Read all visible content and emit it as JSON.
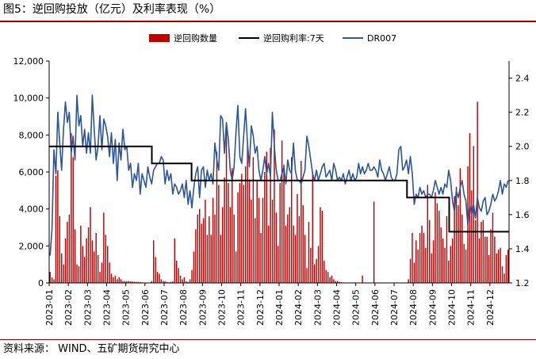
{
  "title": "图5：逆回购投放（亿元）及利率表现（%）",
  "source": "资料来源：  WIND、五矿期货研究中心",
  "colors": {
    "bars": "#c00000",
    "policy": "#000000",
    "dr007": "#2e5597",
    "rule": "#a80000"
  },
  "chart_data": {
    "type": "bar+line",
    "legend_placement": "top",
    "grid": false,
    "x_ticks": [
      "2023-01",
      "2023-02",
      "2023-03",
      "2023-04",
      "2023-05",
      "2023-06",
      "2023-07",
      "2023-08",
      "2023-09",
      "2023-10",
      "2023-11",
      "2023-12",
      "2024-01",
      "2024-02",
      "2024-03",
      "2024-04",
      "2024-05",
      "2024-06",
      "2024-07",
      "2024-08",
      "2024-09",
      "2024-10",
      "2024-11",
      "2024-12"
    ],
    "y_left": {
      "ticks": [
        "0",
        "2,000",
        "4,000",
        "6,000",
        "8,000",
        "10,000",
        "12,000"
      ],
      "lim": [
        0,
        12000
      ]
    },
    "y_right": {
      "ticks": [
        "1.2",
        "1.4",
        "1.6",
        "1.8",
        "2.0",
        "2.2",
        "2.4"
      ],
      "lim": [
        1.2,
        2.5
      ]
    },
    "x_range": [
      "2023-01-01",
      "2024-12-31"
    ],
    "series": [
      {
        "name": "逆回购数量",
        "kind": "bar",
        "axis": "left",
        "samples_per_month": 10,
        "monthly": [
          [
            600,
            300,
            200,
            5800,
            6100,
            3600,
            1600,
            1000,
            2400,
            3300
          ],
          [
            3700,
            8100,
            6800,
            2900,
            1000,
            900,
            3100,
            2000,
            1400,
            2400
          ],
          [
            3000,
            4100,
            2300,
            1700,
            2700,
            1500,
            600,
            1100,
            3800,
            2600
          ],
          [
            2000,
            1100,
            500,
            300,
            400,
            200,
            300,
            200,
            100,
            100
          ],
          [
            100,
            100,
            80,
            80,
            60,
            60,
            50,
            40,
            30,
            20
          ],
          [
            20,
            10,
            20,
            100,
            2300,
            1400,
            600,
            500,
            200,
            100
          ],
          [
            100,
            50,
            30,
            60,
            80,
            2400,
            1200,
            800,
            400,
            200
          ],
          [
            300,
            80,
            60,
            200,
            700,
            1700,
            2900,
            3700,
            4000,
            3200
          ],
          [
            3500,
            4500,
            2600,
            3600,
            2600,
            4600,
            3700,
            7100,
            5300,
            2600
          ],
          [
            4100,
            5700,
            8500,
            5400,
            4100,
            6200,
            3700,
            1700,
            4900,
            5400
          ],
          [
            5900,
            5300,
            6300,
            7500,
            5600,
            4500,
            6800,
            3500,
            5500,
            4600
          ],
          [
            2700,
            4600,
            6000,
            7100,
            3100,
            7300,
            4500,
            8300,
            3800,
            2000
          ],
          [
            5400,
            7700,
            6400,
            3100,
            3700,
            4100,
            6800,
            3100,
            2600,
            4800
          ],
          [
            3600,
            6600,
            4200,
            2600,
            800,
            3300,
            1900,
            6000,
            1000,
            1300
          ],
          [
            2000,
            4100,
            3900,
            1200,
            700,
            600,
            300,
            400,
            200,
            100
          ],
          [
            100,
            60,
            40,
            20,
            20,
            20,
            20,
            20,
            20,
            30
          ],
          [
            20,
            20,
            20,
            400,
            20,
            20,
            20,
            20,
            20,
            4400
          ],
          [
            20,
            20,
            20,
            20,
            20,
            20,
            20,
            20,
            20,
            20
          ],
          [
            20,
            20,
            20,
            20,
            20,
            20,
            20,
            200,
            1300,
            2700
          ],
          [
            1100,
            2300,
            1800,
            2700,
            3100,
            2700,
            1900,
            5300,
            3400,
            1600
          ],
          [
            2300,
            4900,
            4300,
            3900,
            3000,
            2400,
            1900,
            3600,
            1200,
            2000
          ],
          [
            2400,
            4700,
            5200,
            4200,
            6200,
            3700,
            2100,
            1800,
            6300,
            8100
          ],
          [
            5000,
            7400,
            3400,
            9800,
            2400,
            3300,
            3400,
            2500,
            2500,
            1500
          ],
          [
            2900,
            3800,
            2500,
            1600,
            1800,
            1900,
            900,
            500,
            1500,
            1800
          ]
        ]
      },
      {
        "name": "逆回购利率:7天",
        "kind": "step",
        "axis": "right",
        "steps": [
          [
            "2023-01-01",
            2.0
          ],
          [
            "2023-06-13",
            1.9
          ],
          [
            "2023-08-15",
            1.8
          ],
          [
            "2024-07-22",
            1.7
          ],
          [
            "2024-09-27",
            1.5
          ],
          [
            "2024-12-31",
            1.5
          ]
        ]
      },
      {
        "name": "DR007",
        "kind": "line",
        "axis": "right",
        "samples_per_month": 10,
        "monthly": [
          [
            1.36,
            1.52,
            1.98,
            1.84,
            2.2,
            2.02,
            1.86,
            2.1,
            2.26,
            2.14
          ],
          [
            2.2,
            1.96,
            2.06,
            1.92,
            2.3,
            2.12,
            2.18,
            2.0,
            2.1,
            1.96
          ],
          [
            2.08,
            1.96,
            2.3,
            2.1,
            1.92,
            2.0,
            2.18,
            1.98,
            2.16,
            2.12
          ],
          [
            2.06,
            1.94,
            2.08,
            1.9,
            2.04,
            1.8,
            2.02,
            1.92,
            2.1,
            1.98
          ],
          [
            2.0,
            1.86,
            1.9,
            1.76,
            1.84,
            1.8,
            1.9,
            1.72,
            1.84,
            1.8
          ],
          [
            1.76,
            1.88,
            1.82,
            1.78,
            1.86,
            1.88,
            1.9,
            1.9,
            1.94,
            1.92
          ],
          [
            1.78,
            1.86,
            1.8,
            1.84,
            1.72,
            1.78,
            1.76,
            1.72,
            1.74,
            1.78
          ],
          [
            1.7,
            1.8,
            1.66,
            1.74,
            1.64,
            1.76,
            1.84,
            1.88,
            1.7,
            1.86
          ],
          [
            1.88,
            1.76,
            1.86,
            1.8,
            1.84,
            1.78,
            2.02,
            1.92,
            1.86,
            2.18
          ],
          [
            2.16,
            1.96,
            2.14,
            2.04,
            1.86,
            1.8,
            1.88,
            2.08,
            2.24,
            1.94
          ],
          [
            1.9,
            2.06,
            2.22,
            2.02,
            1.88,
            2.12,
            2.06,
            1.96,
            2.0,
            1.86
          ],
          [
            1.8,
            1.86,
            1.94,
            1.84,
            1.9,
            1.82,
            2.2,
            2.0,
            1.86,
            1.8
          ],
          [
            1.8,
            1.84,
            1.88,
            1.78,
            1.92,
            1.86,
            1.84,
            2.02,
            1.86,
            1.8
          ],
          [
            1.8,
            1.78,
            1.82,
            1.86,
            2.06,
            2.0,
            1.92,
            1.84,
            1.8,
            1.86
          ],
          [
            1.8,
            1.84,
            1.88,
            1.9,
            1.82,
            1.84,
            1.86,
            1.8,
            1.9,
            1.86
          ],
          [
            1.8,
            1.82,
            1.8,
            1.84,
            1.78,
            1.82,
            1.86,
            1.8,
            1.84,
            1.8
          ],
          [
            1.82,
            1.9,
            1.84,
            1.88,
            1.84,
            1.86,
            1.9,
            1.86,
            1.86,
            1.88
          ],
          [
            1.86,
            1.82,
            1.92,
            1.86,
            1.84,
            1.8,
            1.84,
            1.88,
            1.82,
            1.8
          ],
          [
            1.8,
            1.84,
            1.98,
            2.0,
            1.86,
            1.88,
            1.92,
            1.84,
            1.94,
            1.84
          ],
          [
            1.66,
            1.72,
            1.7,
            1.76,
            1.72,
            1.74,
            1.7,
            1.72,
            1.72,
            1.7
          ],
          [
            1.74,
            1.8,
            1.76,
            1.72,
            1.76,
            1.72,
            1.78,
            1.76,
            1.86,
            1.8
          ],
          [
            1.68,
            1.62,
            1.74,
            1.7,
            1.76,
            1.8,
            1.72,
            1.68,
            1.54,
            1.66
          ],
          [
            1.6,
            1.66,
            1.58,
            1.7,
            1.64,
            1.62,
            1.68,
            1.7,
            1.6,
            1.62
          ],
          [
            1.66,
            1.72,
            1.68,
            1.7,
            1.74,
            1.8,
            1.72,
            1.78,
            1.76,
            1.8
          ]
        ]
      }
    ]
  }
}
